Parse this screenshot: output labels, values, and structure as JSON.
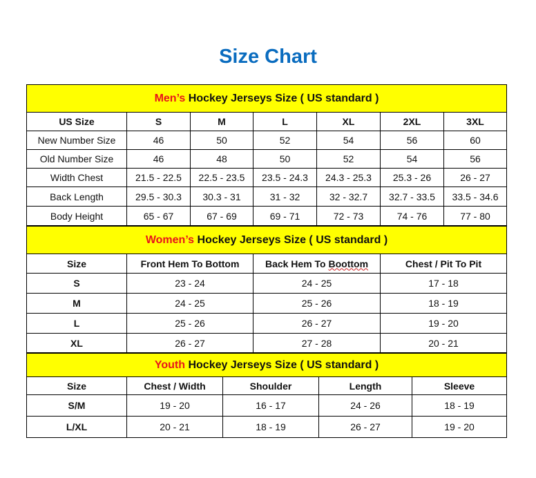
{
  "title": "Size Chart",
  "colors": {
    "title": "#0a6cbf",
    "section_bg": "#ffff00",
    "highlight": "#e8141b"
  },
  "men": {
    "highlight": "Men’s",
    "heading": " Hockey Jerseys Size ( US standard )",
    "header": [
      "US Size",
      "S",
      "M",
      "L",
      "XL",
      "2XL",
      "3XL"
    ],
    "rows": [
      [
        "New Number Size",
        "46",
        "50",
        "52",
        "54",
        "56",
        "60"
      ],
      [
        "Old Number Size",
        "46",
        "48",
        "50",
        "52",
        "54",
        "56"
      ],
      [
        "Width Chest",
        "21.5 - 22.5",
        "22.5 - 23.5",
        "23.5 - 24.3",
        "24.3 - 25.3",
        "25.3 - 26",
        "26 - 27"
      ],
      [
        "Back Length",
        "29.5 - 30.3",
        "30.3 - 31",
        "31 - 32",
        "32 - 32.7",
        "32.7 - 33.5",
        "33.5 - 34.6"
      ],
      [
        "Body Height",
        "65 - 67",
        "67 - 69",
        "69 - 71",
        "72 - 73",
        "74 - 76",
        "77 - 80"
      ]
    ]
  },
  "women": {
    "highlight": "Women’s",
    "heading": " Hockey Jerseys Size ( US standard )",
    "header": [
      "Size",
      "Front Hem To Bottom",
      "Back Hem To Boottom",
      "Chest / Pit To Pit"
    ],
    "rows": [
      [
        "S",
        "23 - 24",
        "24 - 25",
        "17 - 18"
      ],
      [
        "M",
        "24 - 25",
        "25 - 26",
        "18 - 19"
      ],
      [
        "L",
        "25 - 26",
        "26 - 27",
        "19 - 20"
      ],
      [
        "XL",
        "26 - 27",
        "27 - 28",
        "20 - 21"
      ]
    ]
  },
  "youth": {
    "highlight": "Youth",
    "heading": " Hockey Jerseys Size ( US standard )",
    "header": [
      "Size",
      "Chest / Width",
      "Shoulder",
      "Length",
      "Sleeve"
    ],
    "rows": [
      [
        "S/M",
        "19 - 20",
        "16 - 17",
        "24 - 26",
        "18 - 19"
      ],
      [
        "L/XL",
        "20 - 21",
        "18 - 19",
        "26 - 27",
        "19 - 20"
      ]
    ]
  }
}
